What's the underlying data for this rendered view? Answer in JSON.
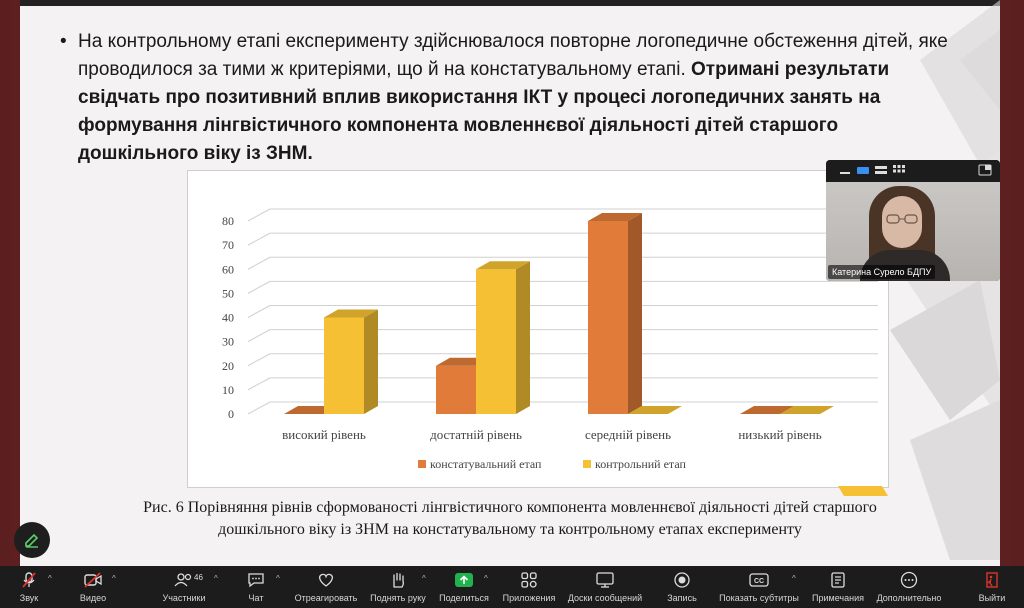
{
  "slide": {
    "bullet_char": "•",
    "bullet_normal": "На контрольному етапі експерименту здійснювалося повторне логопедичне обстеження дітей, яке проводилося за тими ж критеріями, що й на констатувальному етапі. ",
    "bullet_bold": "Отримані результати свідчать про позитивний вплив використання ІКТ у процесі логопедичних занять на формування лінгвістичного компонента мовленнєвої діяльності дітей старшого дошкільного віку із ЗНМ.",
    "caption_line1": "Рис. 6 Порівняння рівнів сформованості лінгвістичного компонента мовленнєвої діяльності дітей старшого",
    "caption_line2": "дошкільного віку із ЗНМ на констатувальному та контрольному етапах експерименту"
  },
  "chart_data": {
    "type": "bar",
    "categories": [
      "високий рівень",
      "достатній рівень",
      "середній рівень",
      "низький рівень"
    ],
    "series": [
      {
        "name": "констатувальний етап",
        "values": [
          0,
          20,
          80,
          0
        ],
        "color": "#e07b39"
      },
      {
        "name": "контрольний етап",
        "values": [
          40,
          60,
          0,
          0
        ],
        "color": "#f5c033"
      }
    ],
    "ylim": [
      0,
      80
    ],
    "yticks": [
      0,
      10,
      20,
      30,
      40,
      50,
      60,
      70,
      80
    ],
    "legend": "bottom",
    "grid": true
  },
  "video": {
    "participant_name": "Катерина Сурело БДПУ"
  },
  "toolbar": {
    "audio": "Звук",
    "video": "Видео",
    "participants": "Участники",
    "participants_count": "46",
    "chat": "Чат",
    "react": "Отреагировать",
    "raise_hand": "Поднять руку",
    "share": "Поделиться",
    "apps": "Приложения",
    "whiteboards": "Доски сообщений",
    "record": "Запись",
    "captions": "Показать субтитры",
    "notes": "Примечания",
    "more": "Дополнительно",
    "leave": "Выйти"
  },
  "colors": {
    "toolbar_bg": "#1c1c1c",
    "share_green": "#23b14d",
    "muted_red": "#e0342c",
    "frame_bg": "#6d2526"
  }
}
